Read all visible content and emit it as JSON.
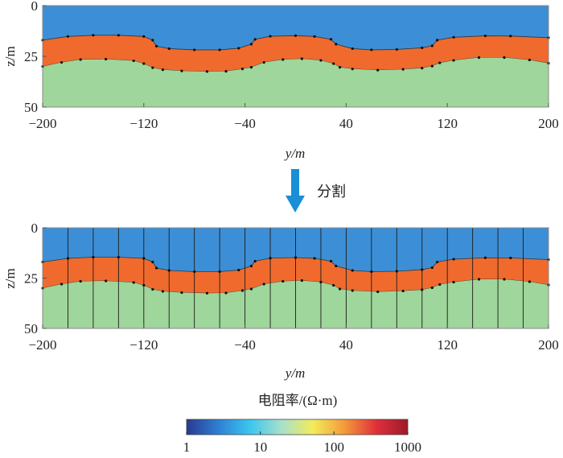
{
  "top_panel": {
    "ylabel": "z/m",
    "xlabel": "y/m",
    "y_ticks": [
      "0",
      "25",
      "50"
    ],
    "x_ticks": [
      "−200",
      "−120",
      "−40",
      "40",
      "120",
      "200"
    ]
  },
  "arrow": {
    "label": "分割",
    "color": "#1a8fd6"
  },
  "bottom_panel": {
    "ylabel": "z/m",
    "xlabel": "y/m",
    "y_ticks": [
      "0",
      "25",
      "50"
    ],
    "x_ticks": [
      "−200",
      "−120",
      "−40",
      "40",
      "120",
      "200"
    ]
  },
  "colorbar": {
    "title": "电阻率/(Ω·m)",
    "tick_labels": [
      "1",
      "10",
      "100",
      "1000"
    ],
    "colors": [
      "#283a8f",
      "#2f7fd4",
      "#3ac6ee",
      "#a8e0cc",
      "#f2ec5a",
      "#f39a3b",
      "#e0303a",
      "#9b1a2a"
    ]
  },
  "layers": {
    "top_color": "#3c8fd6",
    "middle_color": "#f06a2d",
    "bottom_color": "#9fd69b"
  }
}
